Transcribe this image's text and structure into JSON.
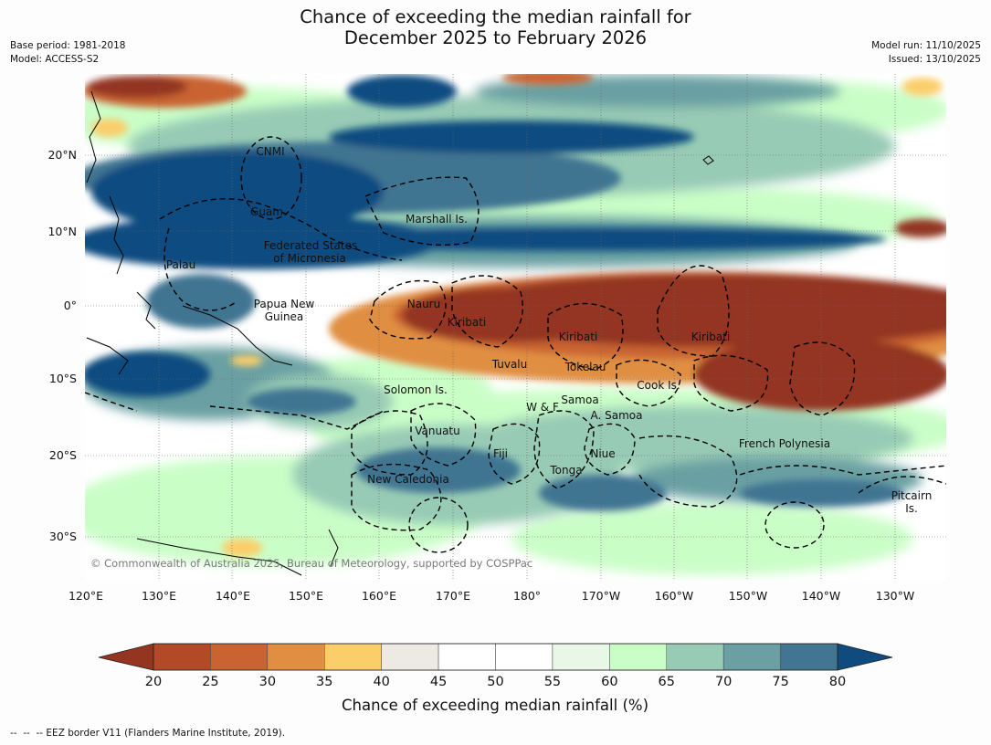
{
  "title_line1": "Chance of exceeding the median rainfall for",
  "title_line2": "December 2025 to February 2026",
  "base_period": "Base period: 1981-2018",
  "model": "Model: ACCESS-S2",
  "model_run": "Model run: 11/10/2025",
  "issued": "Issued: 13/10/2025",
  "copyright": "© Commonwealth of Australia 2025, Bureau of Meteorology, supported by COSPPac",
  "footer": "--  --  -- EEZ border V11 (Flanders Marine Institute, 2019).",
  "lat_labels": [
    "20°N",
    "10°N",
    "0°",
    "10°S",
    "20°S",
    "30°S"
  ],
  "lon_labels": [
    "120°E",
    "130°E",
    "140°E",
    "150°E",
    "160°E",
    "170°E",
    "180°",
    "170°W",
    "160°W",
    "150°W",
    "140°W",
    "130°W"
  ],
  "regions": [
    {
      "name": "CNMI"
    },
    {
      "name": "Guam"
    },
    {
      "name": "Marshall Is."
    },
    {
      "name": "Federated States"
    },
    {
      "name": "of Micronesia"
    },
    {
      "name": "Palau"
    },
    {
      "name": "Papua New"
    },
    {
      "name": "Guinea"
    },
    {
      "name": "Nauru"
    },
    {
      "name": "Kiribati"
    },
    {
      "name": "Kiribati"
    },
    {
      "name": "Kiribati"
    },
    {
      "name": "Tuvalu"
    },
    {
      "name": "Tokelau"
    },
    {
      "name": "Cook Is."
    },
    {
      "name": "Solomon Is."
    },
    {
      "name": "Samoa"
    },
    {
      "name": "W & F"
    },
    {
      "name": "A. Samoa"
    },
    {
      "name": "Vanuatu"
    },
    {
      "name": "Fiji"
    },
    {
      "name": "Niue"
    },
    {
      "name": "French Polynesia"
    },
    {
      "name": "Tonga"
    },
    {
      "name": "New Caledonia"
    },
    {
      "name": "Pitcairn"
    },
    {
      "name": "Is."
    }
  ],
  "legend": {
    "title": "Chance of exceeding median rainfall (%)",
    "ticks": [
      "20",
      "25",
      "30",
      "35",
      "40",
      "45",
      "50",
      "55",
      "60",
      "65",
      "70",
      "75",
      "80"
    ],
    "colors": {
      "below20": "#933520",
      "c20_25": "#b24a28",
      "c25_30": "#c96432",
      "c30_35": "#e08f42",
      "c35_40": "#fbce6a",
      "c40_45": "#ede9e3",
      "c45_50": "#ffffff",
      "c50_55": "#ffffff",
      "c55_60": "#e8f7e6",
      "c60_65": "#cafec7",
      "c65_70": "#98cbb5",
      "c70_75": "#6aa0a3",
      "c75_80": "#417592",
      "above80": "#104b80"
    }
  }
}
